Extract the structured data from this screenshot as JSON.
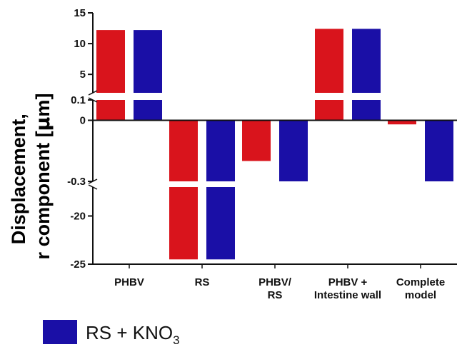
{
  "chart_data": {
    "type": "bar",
    "ylabel_lines": [
      "Displacement,",
      "r component [",
      "μ",
      "m]"
    ],
    "categories": [
      [
        "PHBV"
      ],
      [
        "RS"
      ],
      [
        "PHBV/",
        "RS"
      ],
      [
        "PHBV +",
        "Intestine wall"
      ],
      [
        "Complete",
        "model"
      ]
    ],
    "series": [
      {
        "color": "#d9141c",
        "values": [
          12.2,
          -24.5,
          -0.2,
          12.4,
          -0.02
        ]
      },
      {
        "name": "RS + KNO3",
        "color": "#1a0fa6",
        "values": [
          12.2,
          -24.5,
          -0.3,
          12.4,
          -0.3
        ]
      }
    ],
    "y_axis_segments": [
      {
        "range": [
          2,
          15
        ],
        "ticks": [
          5,
          10,
          15
        ]
      },
      {
        "range": [
          -0.3,
          0.1
        ],
        "ticks": [
          -0.3,
          0,
          0.1
        ]
      },
      {
        "range": [
          -25,
          -17
        ],
        "ticks": [
          -20,
          -25
        ]
      }
    ],
    "legend": {
      "placement": "bottom-left",
      "entries": [
        {
          "text_main": "RS + KNO",
          "text_sub": "3",
          "color": "#1a0fa6"
        }
      ]
    }
  }
}
